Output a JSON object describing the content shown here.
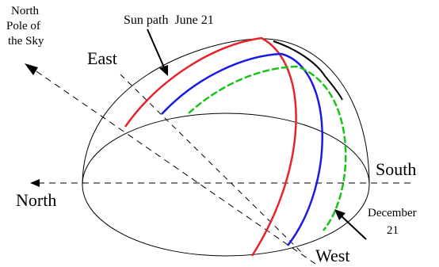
{
  "labels": {
    "north_pole_of_sky": [
      "North",
      "Pole of",
      "the Sky"
    ],
    "sun_path_june": "Sun path  June 21",
    "east": "East",
    "north": "North",
    "south": "South",
    "west": "West",
    "december": [
      "December",
      "21"
    ]
  },
  "colors": {
    "june_path": "#e8222b",
    "equinox_path": "#1a1ae6",
    "december_path": "#18c418",
    "outline": "#000000",
    "axis": "#000000"
  }
}
